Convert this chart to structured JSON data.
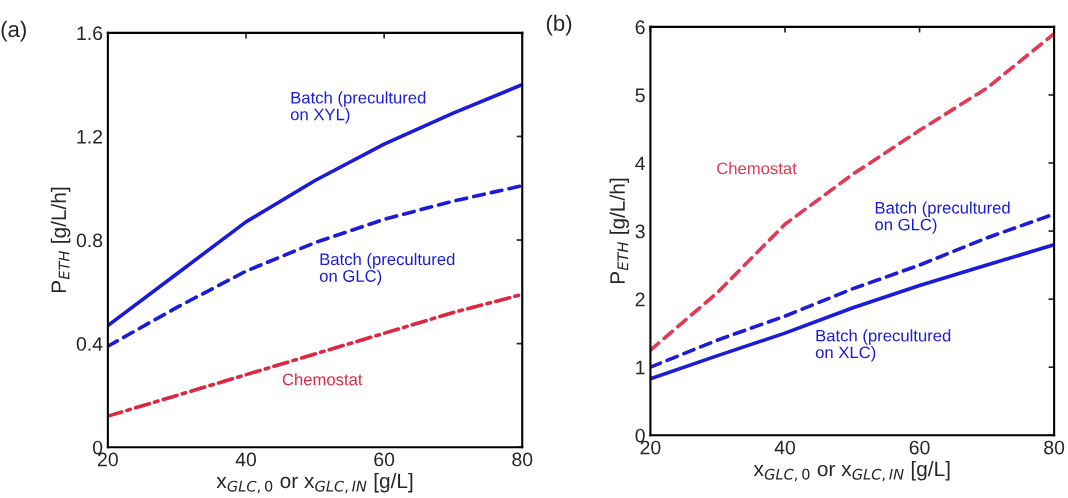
{
  "chart_data": [
    {
      "type": "line",
      "title": "(a)",
      "xlabel": "x$_{GLC,0}$ or x$_{GLC,IN}$ [g/L]",
      "ylabel": "P$_{ETH}$ [g/L/h]",
      "x": [
        20,
        30,
        40,
        50,
        60,
        70,
        80
      ],
      "xlim": [
        20,
        80
      ],
      "xticks": [
        20,
        40,
        60,
        80
      ],
      "ylim": [
        0,
        1.6
      ],
      "yticks": [
        0,
        0.4,
        0.8,
        1.2,
        1.6
      ],
      "grid": false,
      "legend": false,
      "series": [
        {
          "name": "Batch (precultured on XYL)",
          "color": "#1c1cd8",
          "line_style": "solid",
          "values": [
            0.47,
            0.67,
            0.87,
            1.03,
            1.17,
            1.29,
            1.4
          ]
        },
        {
          "name": "Batch (precultured on GLC)",
          "color": "#1c1cd8",
          "line_style": "dashed",
          "values": [
            0.39,
            0.54,
            0.68,
            0.79,
            0.88,
            0.95,
            1.01
          ]
        },
        {
          "name": "Chemostat",
          "color": "#dc2840",
          "line_style": "dashdot",
          "values": [
            0.12,
            0.2,
            0.28,
            0.36,
            0.44,
            0.52,
            0.59
          ]
        }
      ]
    },
    {
      "type": "line",
      "title": "(b)",
      "xlabel": "x$_{GLC,0}$ or x$_{GLC,IN}$ [g/L]",
      "ylabel": "P$_{ETH}$ [g/L/h]",
      "x": [
        20,
        30,
        40,
        50,
        60,
        70,
        80
      ],
      "xlim": [
        20,
        80
      ],
      "xticks": [
        20,
        40,
        60,
        80
      ],
      "ylim": [
        0,
        6
      ],
      "yticks": [
        0,
        1,
        2,
        3,
        4,
        5,
        6
      ],
      "grid": false,
      "legend": false,
      "series": [
        {
          "name": "Chemostat",
          "color": "#e03a55",
          "line_style": "dashed",
          "values": [
            1.25,
            2.1,
            3.1,
            3.83,
            4.48,
            5.1,
            5.9
          ]
        },
        {
          "name": "Batch (precultured on GLC)",
          "color": "#1c1cd8",
          "line_style": "dashed",
          "values": [
            1.0,
            1.4,
            1.75,
            2.15,
            2.5,
            2.9,
            3.25
          ]
        },
        {
          "name": "Batch (precultured on XLC)",
          "color": "#1c1cd8",
          "line_style": "solid",
          "values": [
            0.83,
            1.17,
            1.5,
            1.87,
            2.2,
            2.5,
            2.8
          ]
        }
      ]
    }
  ]
}
